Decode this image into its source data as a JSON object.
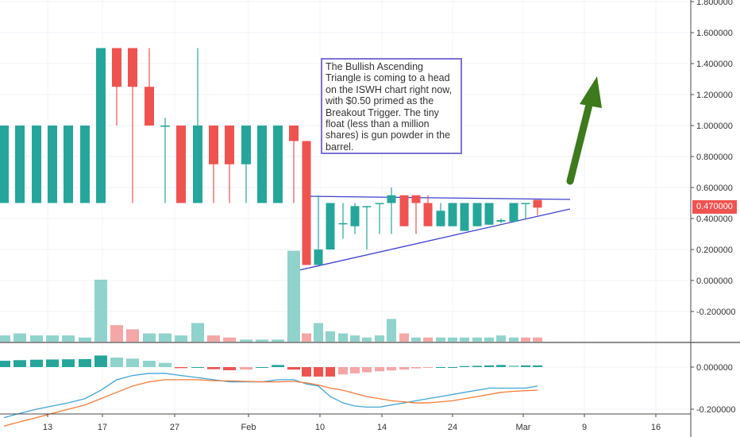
{
  "chart_data": {
    "type": "candlestick",
    "title": "",
    "annotation": "The Bullish Ascending Triangle is coming to a head on the ISWH chart right now, with $0.50 primed as the Breakout Trigger. The tiny float (less than a million shares) is gun powder in the barrel.",
    "last_price_label": "0.470000",
    "x_tick_labels": [
      "13",
      "17",
      "27",
      "Feb",
      "10",
      "14",
      "24",
      "Mar",
      "9",
      "16"
    ],
    "price_axis": {
      "ylim": [
        -0.3,
        1.83
      ],
      "ticks": [
        "1.800000",
        "1.600000",
        "1.400000",
        "1.200000",
        "1.000000",
        "0.800000",
        "0.600000",
        "0.400000",
        "0.200000",
        "0.000000",
        "-0.200000"
      ]
    },
    "macd_axis": {
      "ticks": [
        "0.000000",
        "-0.200000"
      ]
    },
    "colors": {
      "up": "#26a69a",
      "down": "#ef5350",
      "vol_up": "#8fd3cc",
      "vol_down": "#f4a7a6",
      "trend": "#3f3fd0",
      "arrow": "#3c7a1c",
      "macd": "#42a5d5",
      "signal": "#f57c3a"
    },
    "candles": [
      {
        "o": 0.5,
        "h": 1.0,
        "l": 0.5,
        "c": 1.0
      },
      {
        "o": 0.5,
        "h": 1.0,
        "l": 0.5,
        "c": 1.0
      },
      {
        "o": 0.5,
        "h": 1.0,
        "l": 0.5,
        "c": 1.0
      },
      {
        "o": 0.5,
        "h": 1.0,
        "l": 0.5,
        "c": 1.0
      },
      {
        "o": 0.5,
        "h": 1.0,
        "l": 0.5,
        "c": 1.0
      },
      {
        "o": 0.5,
        "h": 1.0,
        "l": 0.5,
        "c": 1.0
      },
      {
        "o": 0.5,
        "h": 1.5,
        "l": 0.5,
        "c": 1.5
      },
      {
        "o": 1.5,
        "h": 1.5,
        "l": 1.0,
        "c": 1.25
      },
      {
        "o": 1.5,
        "h": 1.5,
        "l": 0.5,
        "c": 1.25
      },
      {
        "o": 1.25,
        "h": 1.5,
        "l": 1.0,
        "c": 1.0
      },
      {
        "o": 1.0,
        "h": 1.05,
        "l": 0.5,
        "c": 1.0
      },
      {
        "o": 1.0,
        "h": 1.0,
        "l": 0.5,
        "c": 0.5
      },
      {
        "o": 0.5,
        "h": 1.5,
        "l": 0.5,
        "c": 1.0
      },
      {
        "o": 1.0,
        "h": 1.0,
        "l": 0.5,
        "c": 0.75
      },
      {
        "o": 1.0,
        "h": 1.0,
        "l": 0.5,
        "c": 0.75
      },
      {
        "o": 0.75,
        "h": 1.0,
        "l": 0.5,
        "c": 1.0
      },
      {
        "o": 0.5,
        "h": 1.0,
        "l": 0.5,
        "c": 1.0
      },
      {
        "o": 0.5,
        "h": 1.0,
        "l": 0.5,
        "c": 1.0
      },
      {
        "o": 1.0,
        "h": 1.0,
        "l": 0.5,
        "c": 0.9
      },
      {
        "o": 0.9,
        "h": 0.9,
        "l": 0.1,
        "c": 0.1
      },
      {
        "o": 0.1,
        "h": 0.55,
        "l": 0.1,
        "c": 0.2
      },
      {
        "o": 0.2,
        "h": 0.5,
        "l": 0.2,
        "c": 0.5
      },
      {
        "o": 0.37,
        "h": 0.5,
        "l": 0.27,
        "c": 0.37
      },
      {
        "o": 0.35,
        "h": 0.5,
        "l": 0.3,
        "c": 0.48
      },
      {
        "o": 0.48,
        "h": 0.48,
        "l": 0.2,
        "c": 0.48
      },
      {
        "o": 0.5,
        "h": 0.5,
        "l": 0.3,
        "c": 0.5
      },
      {
        "o": 0.5,
        "h": 0.6,
        "l": 0.3,
        "c": 0.55
      },
      {
        "o": 0.55,
        "h": 0.55,
        "l": 0.35,
        "c": 0.35
      },
      {
        "o": 0.55,
        "h": 0.55,
        "l": 0.3,
        "c": 0.5
      },
      {
        "o": 0.5,
        "h": 0.55,
        "l": 0.35,
        "c": 0.35
      },
      {
        "o": 0.35,
        "h": 0.5,
        "l": 0.35,
        "c": 0.45
      },
      {
        "o": 0.35,
        "h": 0.5,
        "l": 0.35,
        "c": 0.5
      },
      {
        "o": 0.32,
        "h": 0.5,
        "l": 0.32,
        "c": 0.5
      },
      {
        "o": 0.35,
        "h": 0.5,
        "l": 0.35,
        "c": 0.5
      },
      {
        "o": 0.36,
        "h": 0.5,
        "l": 0.36,
        "c": 0.5
      },
      {
        "o": 0.38,
        "h": 0.4,
        "l": 0.37,
        "c": 0.39
      },
      {
        "o": 0.38,
        "h": 0.5,
        "l": 0.38,
        "c": 0.5
      },
      {
        "o": 0.5,
        "h": 0.5,
        "l": 0.4,
        "c": 0.5
      },
      {
        "o": 0.52,
        "h": 0.52,
        "l": 0.42,
        "c": 0.47
      }
    ],
    "volume": [
      0.03,
      0.04,
      0.03,
      0.03,
      0.03,
      0.02,
      0.3,
      0.08,
      0.06,
      0.04,
      0.04,
      0.03,
      0.09,
      0.03,
      0.02,
      0.01,
      0.01,
      0.01,
      0.44,
      0.04,
      0.09,
      0.05,
      0.04,
      0.03,
      0.02,
      0.03,
      0.11,
      0.04,
      0.02,
      0.02,
      0.02,
      0.02,
      0.02,
      0.02,
      0.02,
      0.03,
      0.02,
      0.02,
      0.02
    ],
    "volume_up": [
      true,
      true,
      true,
      true,
      true,
      true,
      true,
      false,
      false,
      true,
      true,
      true,
      true,
      false,
      false,
      true,
      true,
      true,
      true,
      false,
      true,
      true,
      true,
      true,
      true,
      true,
      true,
      false,
      true,
      false,
      true,
      true,
      true,
      true,
      true,
      true,
      true,
      false,
      false
    ],
    "macd_hist": [
      0.03,
      0.033,
      0.035,
      0.036,
      0.037,
      0.038,
      0.055,
      0.045,
      0.04,
      0.03,
      0.02,
      -0.005,
      0.0,
      -0.01,
      -0.015,
      -0.012,
      0.0,
      0.01,
      -0.012,
      -0.045,
      -0.045,
      -0.045,
      -0.035,
      -0.03,
      -0.025,
      -0.02,
      -0.016,
      -0.012,
      -0.006,
      -0.002,
      0.0,
      0.0,
      0.005,
      0.006,
      0.008,
      0.01,
      0.008,
      0.008,
      0.008
    ],
    "macd_line": [
      -0.24,
      -0.22,
      -0.2,
      -0.185,
      -0.17,
      -0.15,
      -0.11,
      -0.06,
      -0.04,
      -0.03,
      -0.03,
      -0.04,
      -0.05,
      -0.06,
      -0.07,
      -0.07,
      -0.07,
      -0.06,
      -0.06,
      -0.08,
      -0.09,
      -0.14,
      -0.17,
      -0.185,
      -0.19,
      -0.19,
      -0.18,
      -0.17,
      -0.16,
      -0.15,
      -0.14,
      -0.13,
      -0.12,
      -0.11,
      -0.1,
      -0.1,
      -0.1,
      -0.1,
      -0.09
    ],
    "signal_line": [
      -0.28,
      -0.26,
      -0.24,
      -0.22,
      -0.2,
      -0.18,
      -0.15,
      -0.12,
      -0.09,
      -0.07,
      -0.06,
      -0.06,
      -0.06,
      -0.065,
      -0.065,
      -0.068,
      -0.07,
      -0.07,
      -0.068,
      -0.075,
      -0.085,
      -0.1,
      -0.11,
      -0.125,
      -0.14,
      -0.15,
      -0.16,
      -0.165,
      -0.17,
      -0.17,
      -0.165,
      -0.16,
      -0.15,
      -0.14,
      -0.13,
      -0.12,
      -0.115,
      -0.112,
      -0.11
    ]
  }
}
